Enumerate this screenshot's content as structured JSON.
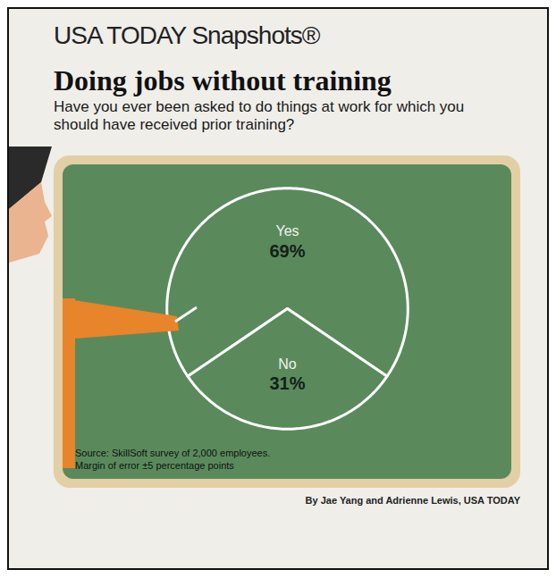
{
  "chart_data": {
    "type": "pie",
    "header": "USA TODAY Snapshots®",
    "title": "Doing jobs without training",
    "subtitle": "Have you ever been asked to do things at work for which you should have received prior training?",
    "categories": [
      "Yes",
      "No"
    ],
    "values": [
      69,
      31
    ],
    "value_labels": [
      "69%",
      "31%"
    ],
    "data_labels": true,
    "colors": [
      "#5a8a5c",
      "#5a8a5c"
    ],
    "source": "Source: SkillSoft survey of 2,000 employees.",
    "note": "Margin of error ±5 percentage points",
    "byline": "By Jae Yang and Adrienne Lewis, USA TODAY"
  }
}
